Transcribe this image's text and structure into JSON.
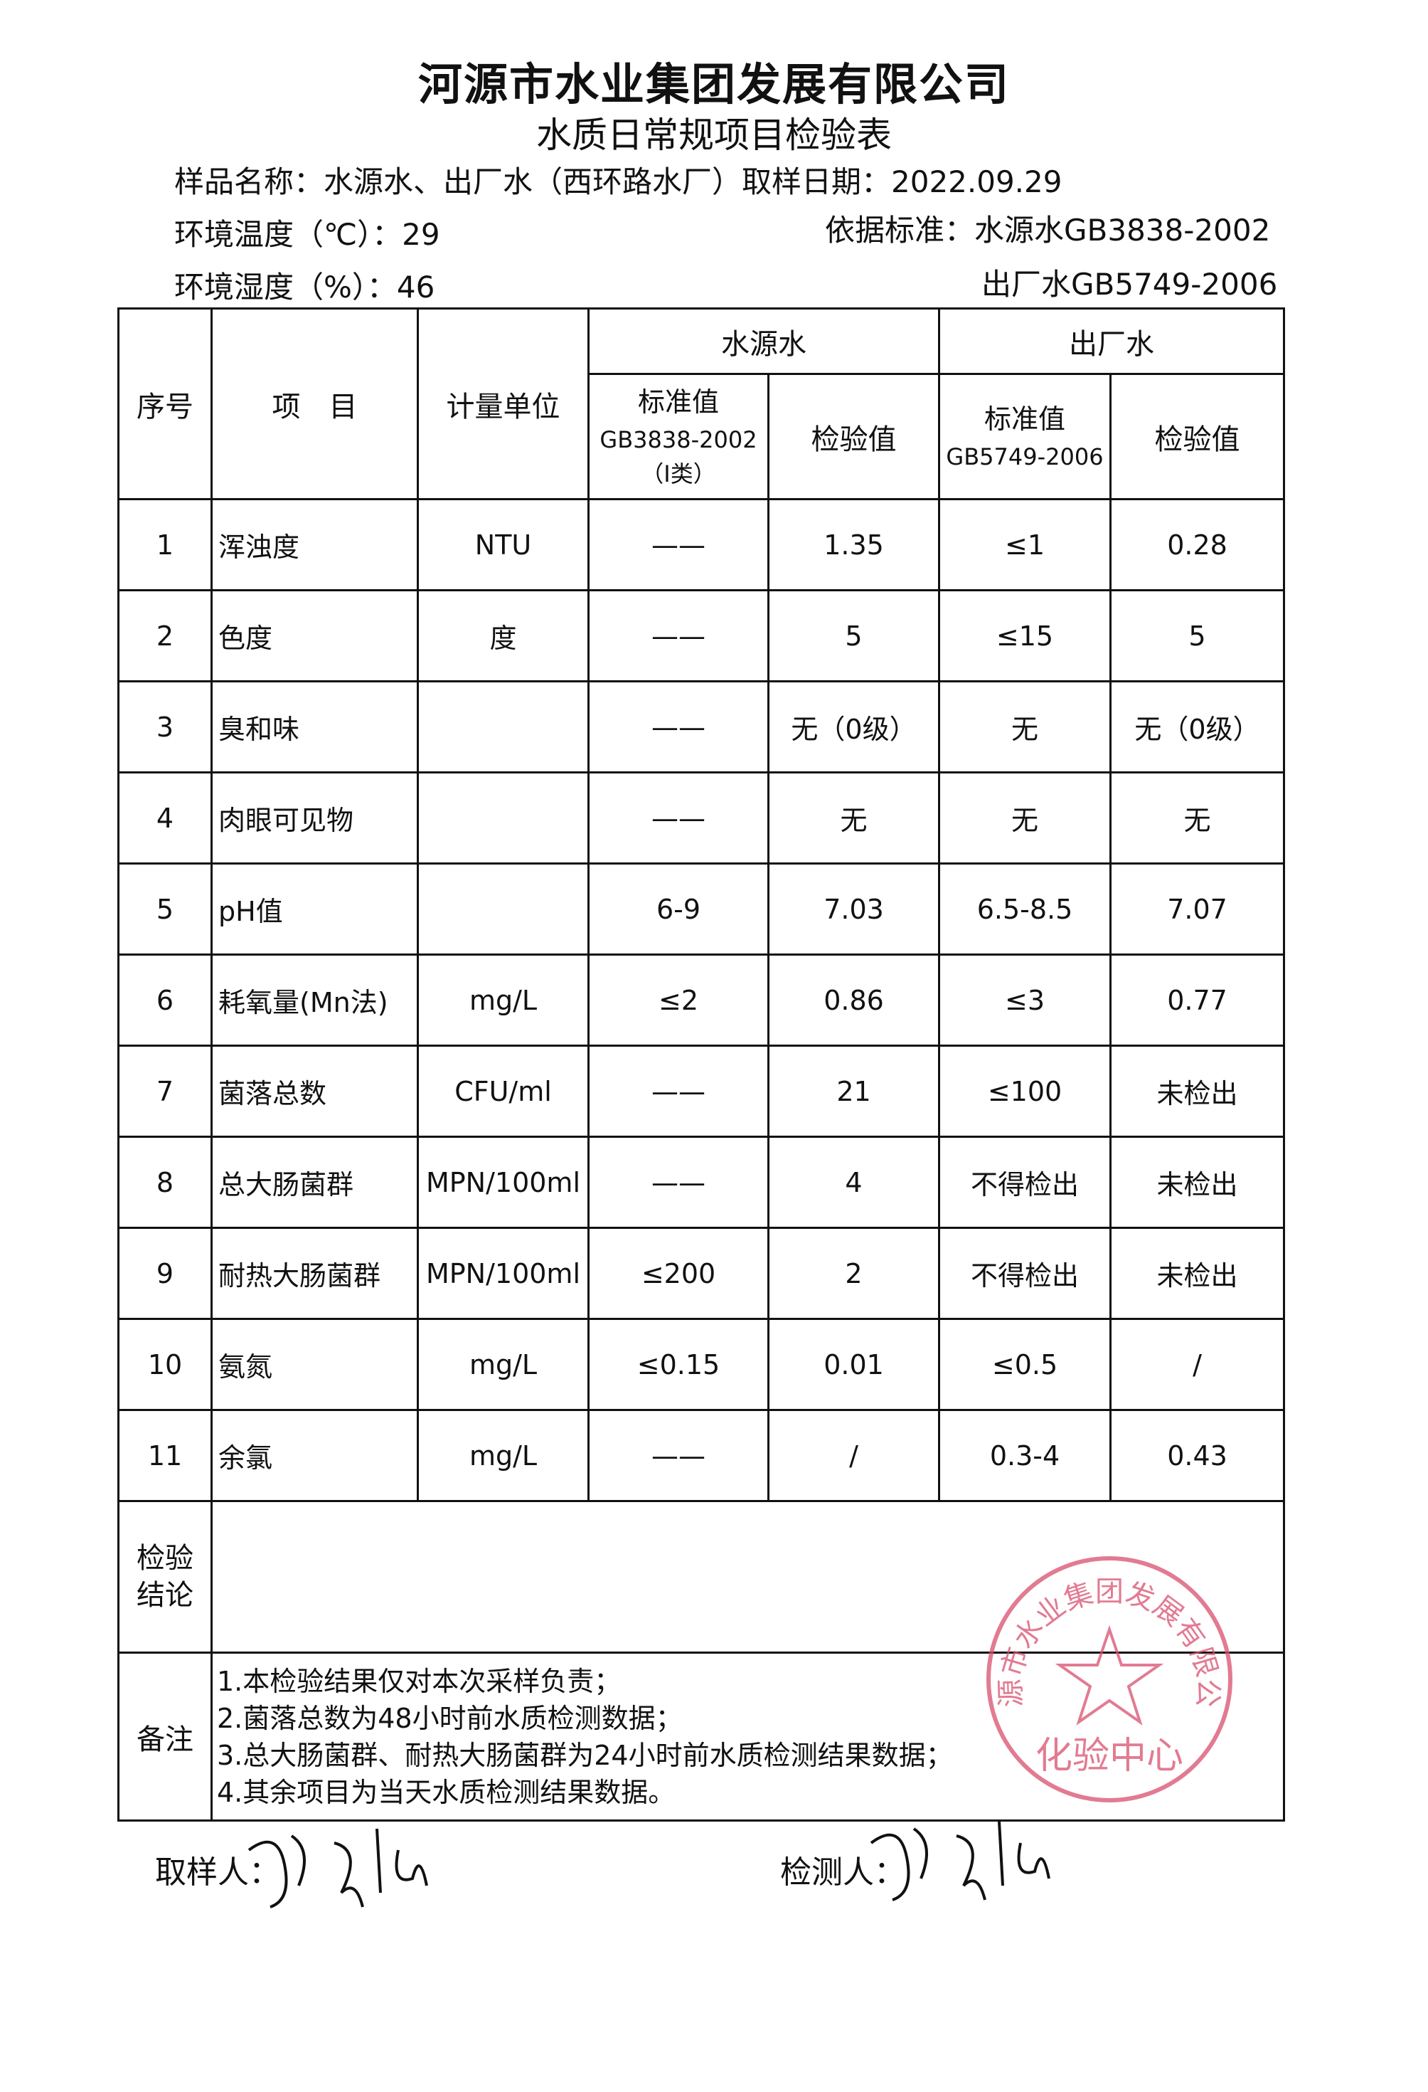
{
  "header": {
    "company": "河源市水业集团发展有限公司",
    "form_title": "水质日常规项目检验表",
    "sample_name": "样品名称：水源水、出厂水（西环路水厂）取样日期：2022.09.29",
    "temperature": "环境温度（℃）：29",
    "humidity": "环境湿度（%）：46",
    "standard_1": "依据标准：水源水GB3838-2002",
    "standard_2": "出厂水GB5749-2006"
  },
  "table": {
    "col_no": "序号",
    "col_item": "项　目",
    "col_unit": "计量单位",
    "group_source": "水源水",
    "group_outlet": "出厂水",
    "source_std_label": "标准值",
    "source_std_code": "GB3838-2002",
    "source_std_class": "（Ⅰ类）",
    "source_value": "检验值",
    "outlet_std_label": "标准值",
    "outlet_std_code": "GB5749-2006",
    "outlet_value": "检验值",
    "rows": [
      {
        "no": "1",
        "item": "浑浊度",
        "unit": "NTU",
        "src_std": "——",
        "src_val": "1.35",
        "out_std": "≤1",
        "out_val": "0.28"
      },
      {
        "no": "2",
        "item": "色度",
        "unit": "度",
        "src_std": "——",
        "src_val": "5",
        "out_std": "≤15",
        "out_val": "5"
      },
      {
        "no": "3",
        "item": "臭和味",
        "unit": "",
        "src_std": "——",
        "src_val": "无（0级）",
        "out_std": "无",
        "out_val": "无（0级）"
      },
      {
        "no": "4",
        "item": "肉眼可见物",
        "unit": "",
        "src_std": "——",
        "src_val": "无",
        "out_std": "无",
        "out_val": "无"
      },
      {
        "no": "5",
        "item": "pH值",
        "unit": "",
        "src_std": "6-9",
        "src_val": "7.03",
        "out_std": "6.5-8.5",
        "out_val": "7.07"
      },
      {
        "no": "6",
        "item": "耗氧量(Mn法)",
        "unit": "mg/L",
        "src_std": "≤2",
        "src_val": "0.86",
        "out_std": "≤3",
        "out_val": "0.77"
      },
      {
        "no": "7",
        "item": "菌落总数",
        "unit": "CFU/ml",
        "src_std": "——",
        "src_val": "21",
        "out_std": "≤100",
        "out_val": "未检出"
      },
      {
        "no": "8",
        "item": "总大肠菌群",
        "unit": "MPN/100ml",
        "src_std": "——",
        "src_val": "4",
        "out_std": "不得检出",
        "out_val": "未检出"
      },
      {
        "no": "9",
        "item": "耐热大肠菌群",
        "unit": "MPN/100ml",
        "src_std": "≤200",
        "src_val": "2",
        "out_std": "不得检出",
        "out_val": "未检出"
      },
      {
        "no": "10",
        "item": "氨氮",
        "unit": "mg/L",
        "src_std": "≤0.15",
        "src_val": "0.01",
        "out_std": "≤0.5",
        "out_val": "/"
      },
      {
        "no": "11",
        "item": "余氯",
        "unit": "mg/L",
        "src_std": "——",
        "src_val": "/",
        "out_std": "0.3-4",
        "out_val": "0.43"
      }
    ],
    "conclusion_label": "检验结论",
    "remarks_label": "备注",
    "remarks": [
      "1.本检验结果仅对本次采样负责；",
      "2.菌落总数为48小时前水质检测数据；",
      "3.总大肠菌群、耐热大肠菌群为24小时前水质检测结果数据；",
      "4.其余项目为当天水质检测结果数据。"
    ]
  },
  "stamp": {
    "outer_text": "河源市水业集团发展有限公司",
    "inner_text": "化验中心",
    "color": "#d9506e"
  },
  "footer": {
    "sampler_label": "取样人：",
    "tester_label": "检测人："
  }
}
